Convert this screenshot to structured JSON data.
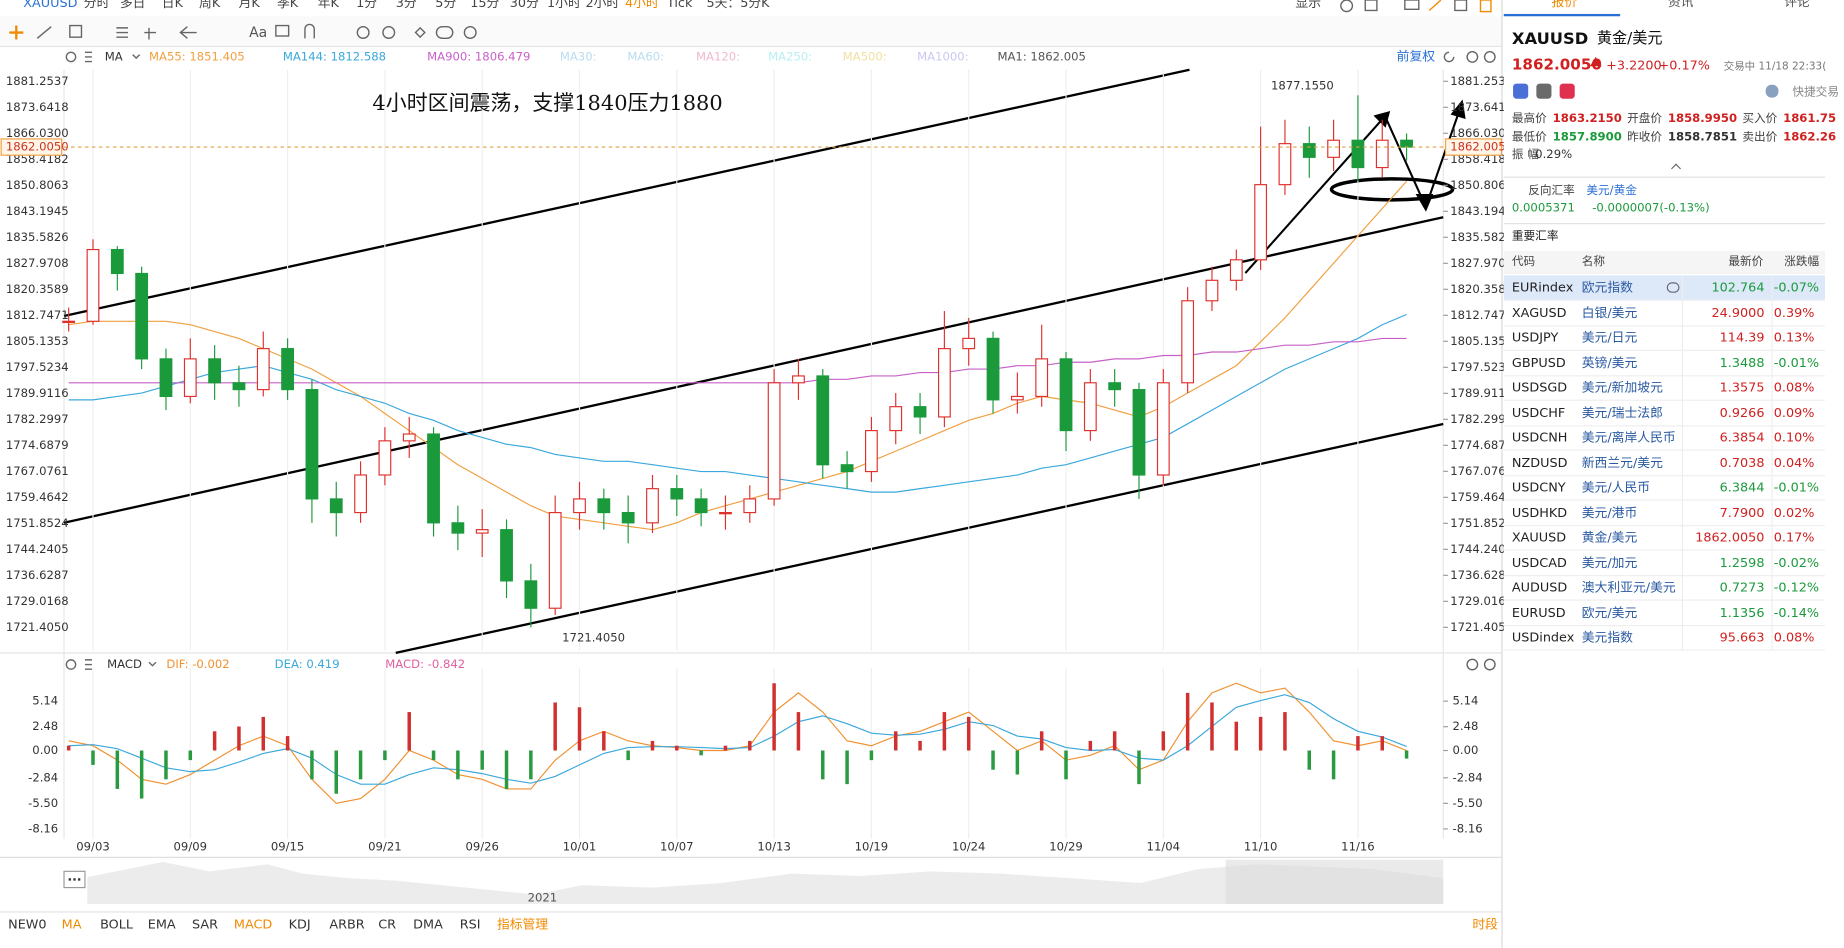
{
  "toolbar": {
    "symbol": "XAUUSD",
    "periods": [
      "分时",
      "多日",
      "日K",
      "周K",
      "月K",
      "季K",
      "年K",
      "1分",
      "3分",
      "5分",
      "15分",
      "30分",
      "1小时",
      "2小时",
      "4小时",
      "Tick",
      "5天：5分K"
    ],
    "active_index": 14,
    "display": "显示",
    "font_tool": "Aa"
  },
  "chart_header": {
    "indicator": "MA",
    "inactive": [
      "MA30:",
      "MA60:",
      "MA120:",
      "MA250:",
      "MA500:",
      "MA1000:"
    ],
    "ma1": "MA1: 1862.005",
    "adjust": "前复权"
  },
  "macd_header": {
    "indicator": "MACD"
  },
  "chart_data": [
    {
      "type": "candlestick",
      "up_color": "#e0302c",
      "down_color": "#1b9a3c",
      "grid": "vertical",
      "ylim": [
        1714.6,
        1884.65
      ],
      "yticks": [
        1881.2537,
        1873.6418,
        {
          "value": 1866.03,
          "label": "1866.0300"
        },
        1858.4182,
        1850.8063,
        1843.1945,
        1835.5826,
        1827.9708,
        1820.3589,
        1812.7471,
        1805.1353,
        1797.5234,
        1789.9116,
        1782.2997,
        1774.6879,
        1767.0761,
        1759.4642,
        1751.8524,
        1744.2405,
        1736.6287,
        1729.0168,
        {
          "value": 1721.405,
          "label": "1721.4050"
        }
      ],
      "last_label": "1862.0050",
      "annotations": [
        "4小时区间震荡，支撑1840压力1880",
        "1877.1550",
        "1721.4050"
      ],
      "close": [
        1811,
        1832,
        1825,
        1800,
        1789,
        1800,
        1793,
        1791,
        1803,
        1791,
        1759,
        1755,
        1766,
        1776,
        1778,
        1752,
        1749,
        1750,
        1735,
        1727,
        1755,
        1759,
        1755,
        1752,
        1762,
        1759,
        1755,
        1755,
        1759,
        1793,
        1795,
        1769,
        1767,
        1779,
        1786,
        1783,
        1803,
        1806,
        1788,
        1789,
        1800,
        1779,
        1793,
        1791,
        1766,
        1793,
        1817,
        1823,
        1829,
        1851,
        1863,
        1859,
        1864,
        1856,
        1864,
        1862.005
      ],
      "high": [
        1815,
        1835,
        1833,
        1827,
        1803,
        1806,
        1804,
        1798,
        1808,
        1806,
        1794,
        1764,
        1770,
        1780,
        1783,
        1780,
        1757,
        1756,
        1753,
        1740,
        1760,
        1764,
        1762,
        1760,
        1766,
        1766,
        1762,
        1760,
        1763,
        1797,
        1800,
        1797,
        1773,
        1783,
        1790,
        1790,
        1814,
        1812,
        1808,
        1796,
        1810,
        1802,
        1797,
        1797,
        1793,
        1797,
        1821,
        1827,
        1832,
        1868,
        1870,
        1868,
        1870,
        1877.155,
        1870,
        1866
      ],
      "low": [
        1808,
        1810,
        1820,
        1797,
        1785,
        1787,
        1788,
        1786,
        1789,
        1788,
        1752,
        1748,
        1752,
        1763,
        1771,
        1748,
        1744,
        1742,
        1730,
        1721.405,
        1725,
        1750,
        1750,
        1746,
        1749,
        1754,
        1751,
        1750,
        1752,
        1757,
        1788,
        1765,
        1762,
        1764,
        1775,
        1778,
        1780,
        1798,
        1784,
        1784,
        1786,
        1773,
        1776,
        1786,
        1759,
        1763,
        1790,
        1814,
        1820,
        1826,
        1848,
        1853,
        1855,
        1852,
        1853,
        1858
      ],
      "series": [
        {
          "name": "MA55: 1851.405",
          "color": "#f0a040",
          "values": [
            1810,
            1811,
            1811,
            1811,
            1811,
            1810,
            1808,
            1806,
            1803,
            1800,
            1797,
            1793,
            1789,
            1784,
            1779,
            1774,
            1769,
            1765,
            1761,
            1757,
            1754,
            1753,
            1752,
            1751,
            1750,
            1752,
            1755,
            1757,
            1759,
            1761,
            1763,
            1765,
            1767,
            1770,
            1773,
            1776,
            1779,
            1782,
            1784,
            1787,
            1789,
            1788,
            1787,
            1785,
            1783,
            1786,
            1790,
            1794,
            1798,
            1805,
            1812,
            1820,
            1828,
            1836,
            1844,
            1852
          ]
        },
        {
          "name": "MA144: 1812.588",
          "color": "#3aa8dc",
          "values": [
            1788,
            1788,
            1789,
            1790,
            1792,
            1794,
            1796,
            1797,
            1798,
            1796,
            1794,
            1791,
            1789,
            1787,
            1784,
            1782,
            1779,
            1777,
            1775,
            1774,
            1772,
            1771,
            1770,
            1770,
            1769,
            1768,
            1767,
            1767,
            1766,
            1765,
            1764,
            1763,
            1762,
            1761,
            1761,
            1762,
            1763,
            1764,
            1765,
            1766,
            1768,
            1769,
            1771,
            1773,
            1775,
            1777,
            1781,
            1785,
            1789,
            1793,
            1797,
            1800,
            1803,
            1806,
            1810,
            1813
          ]
        },
        {
          "name": "MA900: 1806.479",
          "color": "#c860c8",
          "values": [
            1793,
            1793,
            1793,
            1793,
            1793,
            1793,
            1793,
            1793,
            1793,
            1793,
            1793,
            1793,
            1793,
            1793,
            1793,
            1793,
            1793,
            1793,
            1793,
            1793,
            1793,
            1793,
            1793,
            1793,
            1793,
            1793,
            1793,
            1793,
            1793,
            1793,
            1793,
            1794,
            1794,
            1795,
            1795,
            1796,
            1796,
            1797,
            1797,
            1798,
            1798,
            1799,
            1799,
            1800,
            1800,
            1801,
            1801,
            1802,
            1802,
            1803,
            1804,
            1804,
            1805,
            1805,
            1806,
            1806
          ]
        }
      ]
    },
    {
      "type": "macd",
      "ylim": [
        -9.19,
        7.62
      ],
      "yticks": [
        5.14,
        2.48,
        {
          "value": 0,
          "label": "0.00"
        },
        -2.84,
        {
          "value": -5.5,
          "label": "-5.50"
        },
        -8.16
      ],
      "categories": [
        null,
        "09/03",
        null,
        null,
        null,
        "09/09",
        null,
        null,
        null,
        "09/15",
        null,
        null,
        null,
        "09/21",
        null,
        null,
        null,
        "09/26",
        null,
        null,
        null,
        "10/01",
        null,
        null,
        null,
        "10/07",
        null,
        null,
        null,
        "10/13",
        null,
        null,
        null,
        "10/19",
        null,
        null,
        null,
        "10/24",
        null,
        null,
        null,
        "10/29",
        null,
        null,
        null,
        "11/04",
        null,
        null,
        null,
        "11/10",
        null,
        null,
        null,
        "11/16",
        null,
        null
      ],
      "series": [
        {
          "name": "DIF: -0.002",
          "color": "#f09030",
          "values": [
            1,
            0.5,
            -1,
            -3,
            -3.5,
            -2.5,
            -1,
            0.5,
            1.5,
            0.5,
            -3,
            -5.5,
            -5,
            -3,
            0,
            -1,
            -2.5,
            -3,
            -4,
            -4,
            -1,
            1,
            2,
            1,
            0.5,
            0.3,
            0,
            0,
            0.5,
            4,
            6,
            4,
            1,
            0.5,
            1.5,
            2,
            3,
            4,
            2,
            0,
            1,
            -1,
            -0.5,
            0.5,
            -2,
            -1,
            3,
            6,
            7,
            6,
            6.5,
            4,
            1,
            0.5,
            1,
            -0.002
          ]
        },
        {
          "name": "DEA: 0.419",
          "color": "#3aa8dc",
          "values": [
            0.5,
            0.6,
            0.2,
            -0.8,
            -1.8,
            -2.2,
            -2,
            -1.2,
            -0.3,
            0.2,
            -0.8,
            -2.5,
            -3.5,
            -3.5,
            -2.5,
            -1.8,
            -2,
            -2.4,
            -3,
            -3.4,
            -2.7,
            -1.5,
            -0.3,
            0.3,
            0.4,
            0.4,
            0.3,
            0.2,
            0.3,
            1.5,
            3,
            3.6,
            2.8,
            1.8,
            1.6,
            1.7,
            2.2,
            3,
            2.6,
            1.5,
            1.2,
            0.3,
            0,
            0.1,
            -0.8,
            -1,
            0.5,
            2.5,
            4.5,
            5.2,
            5.8,
            5,
            3.3,
            2,
            1.4,
            0.419
          ]
        },
        {
          "name": "MACD: -0.842",
          "color": "#e060a0",
          "up_color": "#d03030",
          "down_color": "#2a9a40",
          "values": [
            0.5,
            -1.5,
            -4,
            -5,
            -3,
            -1,
            2,
            2.5,
            3.5,
            1.5,
            -3,
            -4.5,
            -3,
            -1,
            4,
            -1,
            -3,
            -2,
            -4,
            -3,
            5,
            4.5,
            2,
            -1,
            1,
            0.5,
            -0.5,
            0.5,
            1,
            7,
            4,
            -3,
            -3.5,
            -1,
            2,
            1,
            4,
            3.5,
            -2,
            -2.5,
            2,
            -3,
            1,
            2,
            -3.5,
            2,
            6,
            5,
            3,
            3.5,
            4,
            -2,
            -3,
            1.5,
            1.5,
            -0.842
          ]
        }
      ]
    }
  ],
  "navigator": {
    "year": "2021"
  },
  "bottom_tabs": {
    "items": [
      "NEW0",
      "MA",
      "BOLL",
      "EMA",
      "SAR",
      "MACD",
      "KDJ",
      "ARBR",
      "CR",
      "DMA",
      "RSI",
      "指标管理"
    ],
    "active": [
      1,
      5,
      11
    ],
    "session": "时段"
  },
  "right_panel": {
    "tabs": [
      "报价",
      "资讯",
      "评论"
    ],
    "symbol": "XAUUSD",
    "symbol_name": "黄金/美元",
    "price": "1862.0050",
    "change": "+3.2200",
    "change_pct": "+0.17%",
    "status": "交易中 11/18 22:33(",
    "quick_trade": "快捷交易",
    "stats": [
      [
        "最高价",
        "1863.2150"
      ],
      [
        "开盘价",
        "1858.9950"
      ],
      [
        "买入价",
        "1861.75"
      ],
      [
        "最低价",
        "1857.8900"
      ],
      [
        "昨收价",
        "1858.7851"
      ],
      [
        "卖出价",
        "1862.26"
      ]
    ],
    "amplitude_label": "振 幅",
    "amplitude": "0.29%",
    "reverse_label": "反向汇率",
    "reverse_pair": "美元/黄金",
    "reverse_price": "0.0005371",
    "reverse_change": "-0.0000007(-0.13%)",
    "table_title": "重要汇率",
    "columns": [
      "代码",
      "名称",
      "最新价",
      "涨跌幅"
    ],
    "rows": [
      [
        "EURindex",
        "欧元指数",
        "102.764",
        "-0.07%"
      ],
      [
        "XAGUSD",
        "白银/美元",
        "24.9000",
        "0.39%"
      ],
      [
        "USDJPY",
        "美元/日元",
        "114.39",
        "0.13%"
      ],
      [
        "GBPUSD",
        "英镑/美元",
        "1.3488",
        "-0.01%"
      ],
      [
        "USDSGD",
        "美元/新加坡元",
        "1.3575",
        "0.08%"
      ],
      [
        "USDCHF",
        "美元/瑞士法郎",
        "0.9266",
        "0.09%"
      ],
      [
        "USDCNH",
        "美元/离岸人民币",
        "6.3854",
        "0.10%"
      ],
      [
        "NZDUSD",
        "新西兰元/美元",
        "0.7038",
        "0.04%"
      ],
      [
        "USDCNY",
        "美元/人民币",
        "6.3844",
        "-0.01%"
      ],
      [
        "USDHKD",
        "美元/港币",
        "7.7900",
        "0.02%"
      ],
      [
        "XAUUSD",
        "黄金/美元",
        "1862.0050",
        "0.17%"
      ],
      [
        "USDCAD",
        "美元/加元",
        "1.2598",
        "-0.02%"
      ],
      [
        "AUDUSD",
        "澳大利亚元/美元",
        "0.7273",
        "-0.12%"
      ],
      [
        "EURUSD",
        "欧元/美元",
        "1.1356",
        "-0.14%"
      ],
      [
        "USDindex",
        "美元指数",
        "95.663",
        "0.08%"
      ]
    ]
  }
}
